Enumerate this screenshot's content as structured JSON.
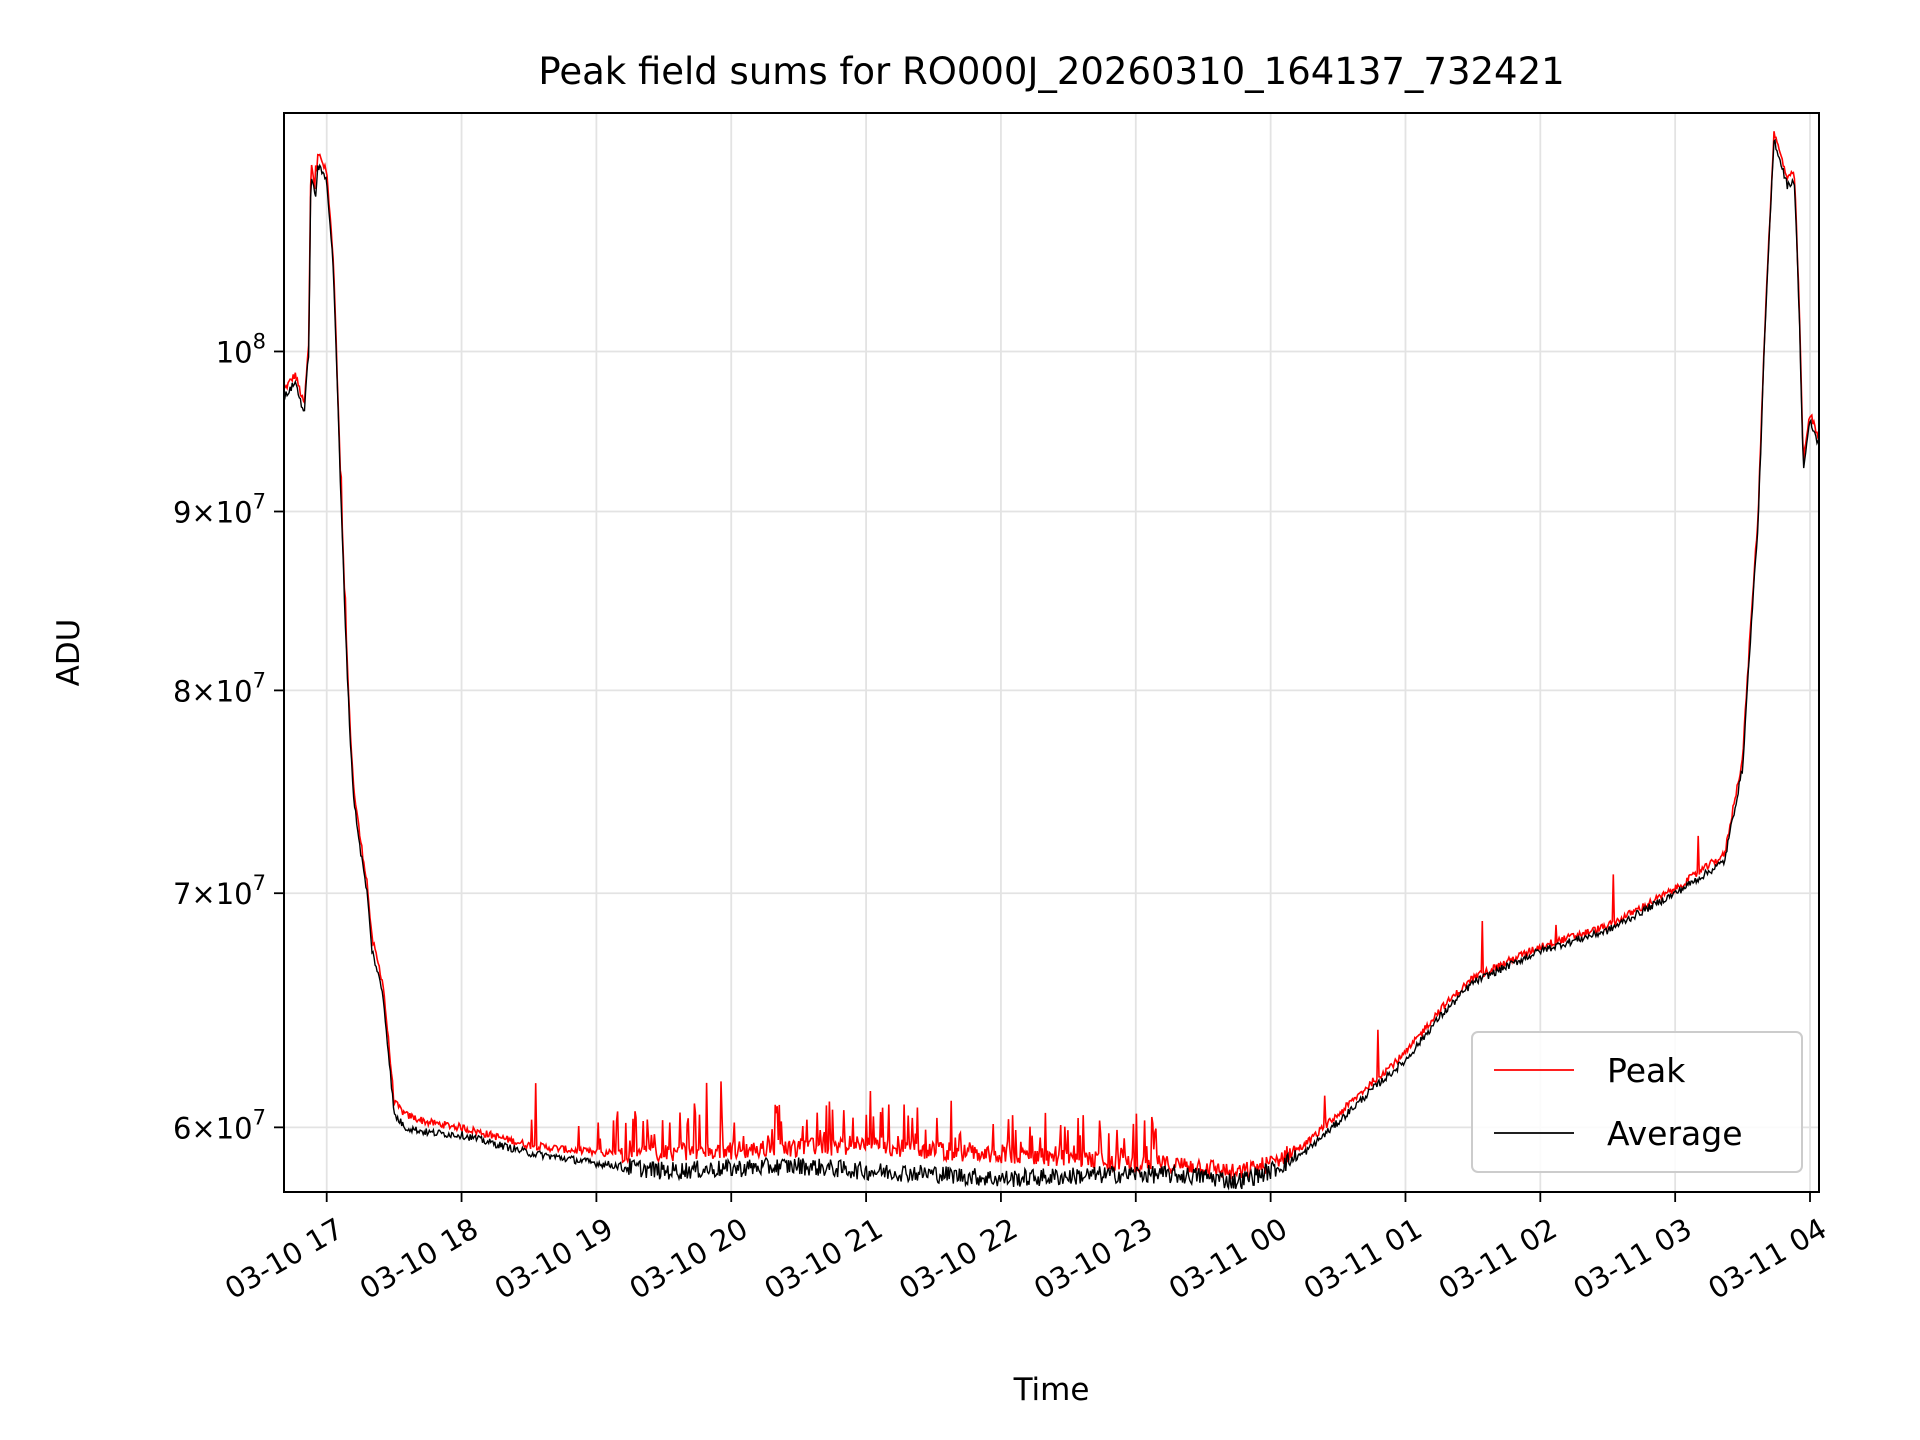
{
  "chart_data": {
    "type": "line",
    "title": "Peak field sums for RO000J_20260310_164137_732421",
    "xlabel": "Time",
    "ylabel": "ADU",
    "y_scale": "log",
    "xlim": [
      "2026-03-10 16:41",
      "2026-03-11 04:04"
    ],
    "ylim": [
      57500000,
      117000000
    ],
    "grid": true,
    "legend_position": "lower-right",
    "x_ticks": [
      "03-10 17",
      "03-10 18",
      "03-10 19",
      "03-10 20",
      "03-10 21",
      "03-10 22",
      "03-10 23",
      "03-11 00",
      "03-11 01",
      "03-11 02",
      "03-11 03",
      "03-11 04"
    ],
    "y_ticks": [
      {
        "value": 60000000,
        "mantissa": "6",
        "base": "10",
        "exp": "7"
      },
      {
        "value": 70000000,
        "mantissa": "7",
        "base": "10",
        "exp": "7"
      },
      {
        "value": 80000000,
        "mantissa": "8",
        "base": "10",
        "exp": "7"
      },
      {
        "value": 90000000,
        "mantissa": "9",
        "base": "10",
        "exp": "7"
      },
      {
        "value": 100000000,
        "mantissa": "",
        "base": "10",
        "exp": "8"
      }
    ],
    "series": [
      {
        "name": "Peak",
        "color": "#ff0000",
        "x": [
          "2026-03-10 16:41",
          "2026-03-10 16:46",
          "2026-03-10 16:50",
          "2026-03-10 16:52",
          "2026-03-10 16:53",
          "2026-03-10 16:55",
          "2026-03-10 16:56",
          "2026-03-10 17:00",
          "2026-03-10 17:03",
          "2026-03-10 17:06",
          "2026-03-10 17:08",
          "2026-03-10 17:10",
          "2026-03-10 17:12",
          "2026-03-10 17:15",
          "2026-03-10 17:18",
          "2026-03-10 17:20",
          "2026-03-10 17:25",
          "2026-03-10 17:30",
          "2026-03-10 17:35",
          "2026-03-10 17:45",
          "2026-03-10 18:00",
          "2026-03-10 18:30",
          "2026-03-10 19:00",
          "2026-03-10 19:30",
          "2026-03-10 20:00",
          "2026-03-10 20:30",
          "2026-03-10 21:00",
          "2026-03-10 21:30",
          "2026-03-10 22:00",
          "2026-03-10 22:30",
          "2026-03-10 23:00",
          "2026-03-10 23:30",
          "2026-03-10 23:45",
          "2026-03-11 00:00",
          "2026-03-11 00:15",
          "2026-03-11 00:30",
          "2026-03-11 00:45",
          "2026-03-11 01:00",
          "2026-03-11 01:15",
          "2026-03-11 01:30",
          "2026-03-11 02:00",
          "2026-03-11 02:30",
          "2026-03-11 03:00",
          "2026-03-11 03:15",
          "2026-03-11 03:22",
          "2026-03-11 03:30",
          "2026-03-11 03:37",
          "2026-03-11 03:40",
          "2026-03-11 03:44",
          "2026-03-11 03:50",
          "2026-03-11 03:53",
          "2026-03-11 03:55",
          "2026-03-11 03:57",
          "2026-03-11 04:00",
          "2026-03-11 04:04"
        ],
        "values": [
          97500000,
          98500000,
          96500000,
          100500000,
          113500000,
          111000000,
          114000000,
          112500000,
          106000000,
          92500000,
          85000000,
          79000000,
          75000000,
          72500000,
          70500000,
          68000000,
          66000000,
          61000000,
          60500000,
          60200000,
          60000000,
          59300000,
          59000000,
          59000000,
          59100000,
          59200000,
          59300000,
          59100000,
          58900000,
          58800000,
          58600000,
          58500000,
          58200000,
          58600000,
          59300000,
          60500000,
          61800000,
          63000000,
          64800000,
          66200000,
          67600000,
          68500000,
          70200000,
          71300000,
          71800000,
          76500000,
          90000000,
          102000000,
          115500000,
          112000000,
          112500000,
          104000000,
          93000000,
          96000000,
          94500000
        ]
      },
      {
        "name": "Average",
        "color": "#000000",
        "x": [
          "2026-03-10 16:41",
          "2026-03-10 16:46",
          "2026-03-10 16:50",
          "2026-03-10 16:52",
          "2026-03-10 16:53",
          "2026-03-10 16:55",
          "2026-03-10 16:56",
          "2026-03-10 17:00",
          "2026-03-10 17:03",
          "2026-03-10 17:06",
          "2026-03-10 17:08",
          "2026-03-10 17:10",
          "2026-03-10 17:12",
          "2026-03-10 17:15",
          "2026-03-10 17:18",
          "2026-03-10 17:20",
          "2026-03-10 17:25",
          "2026-03-10 17:30",
          "2026-03-10 17:35",
          "2026-03-10 17:45",
          "2026-03-10 18:00",
          "2026-03-10 18:30",
          "2026-03-10 19:00",
          "2026-03-10 19:30",
          "2026-03-10 20:00",
          "2026-03-10 20:30",
          "2026-03-10 21:00",
          "2026-03-10 21:30",
          "2026-03-10 22:00",
          "2026-03-10 22:30",
          "2026-03-10 23:00",
          "2026-03-10 23:30",
          "2026-03-10 23:45",
          "2026-03-11 00:00",
          "2026-03-11 00:15",
          "2026-03-11 00:30",
          "2026-03-11 00:45",
          "2026-03-11 01:00",
          "2026-03-11 01:15",
          "2026-03-11 01:30",
          "2026-03-11 02:00",
          "2026-03-11 02:30",
          "2026-03-11 03:00",
          "2026-03-11 03:15",
          "2026-03-11 03:22",
          "2026-03-11 03:30",
          "2026-03-11 03:37",
          "2026-03-11 03:40",
          "2026-03-11 03:44",
          "2026-03-11 03:50",
          "2026-03-11 03:53",
          "2026-03-11 03:55",
          "2026-03-11 03:57",
          "2026-03-11 04:00",
          "2026-03-11 04:04"
        ],
        "values": [
          97000000,
          98000000,
          96000000,
          100000000,
          112500000,
          110500000,
          113000000,
          112000000,
          105500000,
          92000000,
          84500000,
          78500000,
          74500000,
          72000000,
          70000000,
          67500000,
          65500000,
          60500000,
          60000000,
          59800000,
          59700000,
          59000000,
          58600000,
          58300000,
          58400000,
          58500000,
          58300000,
          58200000,
          58000000,
          58100000,
          58200000,
          58100000,
          57900000,
          58300000,
          59000000,
          60200000,
          61500000,
          62700000,
          64500000,
          66000000,
          67400000,
          68300000,
          70000000,
          71000000,
          71500000,
          76000000,
          89500000,
          101500000,
          115000000,
          111500000,
          112000000,
          103500000,
          92500000,
          95500000,
          94000000
        ]
      }
    ]
  }
}
